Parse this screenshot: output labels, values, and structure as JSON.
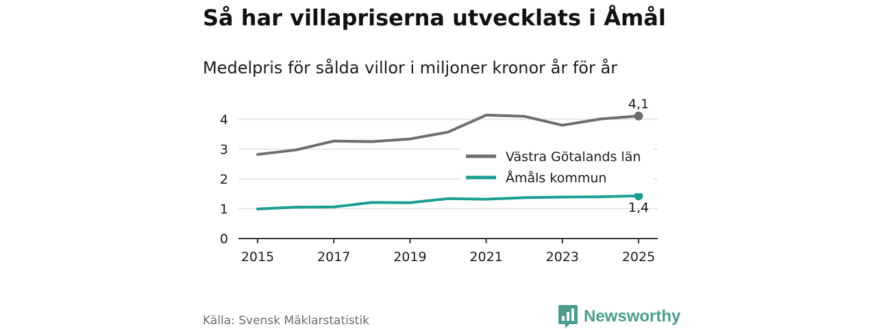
{
  "header": {
    "title": "Så har villapriserna utvecklats i Åmål",
    "subtitle": "Medelpris för sålda villor i miljoner kronor år för år"
  },
  "chart_data": {
    "type": "line",
    "title": "Så har villapriserna utvecklats i Åmål",
    "subtitle": "Medelpris för sålda villor i miljoner kronor år för år",
    "xlabel": "",
    "ylabel": "",
    "x": [
      2015,
      2016,
      2017,
      2018,
      2019,
      2020,
      2021,
      2022,
      2023,
      2024,
      2025
    ],
    "xlim": [
      2015,
      2025
    ],
    "ylim": [
      0,
      4.3
    ],
    "x_ticks": [
      "2015",
      "2017",
      "2019",
      "2021",
      "2023",
      "2025"
    ],
    "y_ticks": [
      "0",
      "1",
      "2",
      "3",
      "4"
    ],
    "grid": true,
    "legend_position": "inside-right",
    "series": [
      {
        "name": "Västra Götalands län",
        "color": "#6e6e6e",
        "values": [
          2.82,
          2.97,
          3.27,
          3.25,
          3.34,
          3.57,
          4.14,
          4.1,
          3.8,
          4.01,
          4.11
        ],
        "end_label": "4,1"
      },
      {
        "name": "Åmåls kommun",
        "color": "#1a9e94",
        "values": [
          0.99,
          1.05,
          1.06,
          1.21,
          1.2,
          1.34,
          1.32,
          1.37,
          1.39,
          1.4,
          1.43
        ],
        "end_label": "1,4"
      }
    ]
  },
  "footer": {
    "source": "Källa: Svensk Mäklarstatistik",
    "brand": "Newsworthy",
    "brand_color": "#4a9d8f"
  }
}
